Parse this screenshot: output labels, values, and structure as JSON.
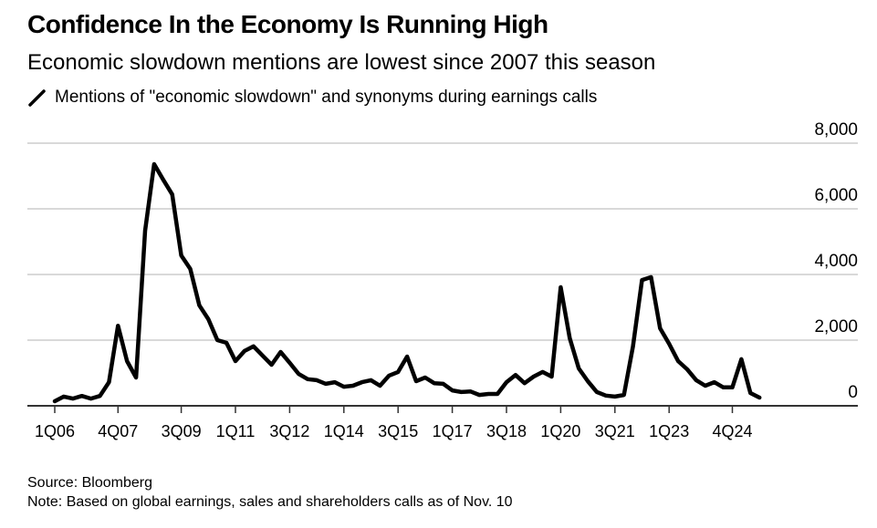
{
  "header": {
    "title": "Confidence In the Economy Is Running High",
    "subtitle": "Economic slowdown mentions are lowest since 2007 this season",
    "legend_label": "Mentions of \"economic slowdown\" and synonyms during earnings calls"
  },
  "footer": {
    "source": "Source: Bloomberg",
    "note": "Note: Based on global earnings, sales and shareholders calls as of Nov. 10"
  },
  "chart_data": {
    "type": "line",
    "title": "Confidence In the Economy Is Running High",
    "subtitle": "Economic slowdown mentions are lowest since 2007 this season",
    "xlabel": "",
    "ylabel": "",
    "ylim": [
      0,
      8000
    ],
    "yticks": [
      0,
      2000,
      4000,
      6000,
      8000
    ],
    "ytick_labels": [
      "0",
      "2,000",
      "4,000",
      "6,000",
      "8,000"
    ],
    "ytick_side": "right",
    "grid": true,
    "legend_position": "top-left",
    "x_start": "1Q06",
    "x_frequency": "quarterly",
    "xticks": [
      {
        "label": "1Q06",
        "index": 0
      },
      {
        "label": "4Q07",
        "index": 7
      },
      {
        "label": "3Q09",
        "index": 14
      },
      {
        "label": "1Q11",
        "index": 20
      },
      {
        "label": "3Q12",
        "index": 26
      },
      {
        "label": "1Q14",
        "index": 32
      },
      {
        "label": "3Q15",
        "index": 38
      },
      {
        "label": "1Q17",
        "index": 44
      },
      {
        "label": "3Q18",
        "index": 50
      },
      {
        "label": "1Q20",
        "index": 56
      },
      {
        "label": "3Q21",
        "index": 62
      },
      {
        "label": "1Q23",
        "index": 68
      },
      {
        "label": "4Q24",
        "index": 75
      }
    ],
    "series": [
      {
        "name": "Mentions of \"economic slowdown\" and synonyms during earnings calls",
        "color": "#000000",
        "values": [
          140,
          280,
          220,
          300,
          220,
          300,
          720,
          2440,
          1360,
          860,
          5330,
          7360,
          6890,
          6440,
          4580,
          4170,
          3060,
          2640,
          2000,
          1920,
          1360,
          1670,
          1810,
          1530,
          1250,
          1640,
          1310,
          970,
          810,
          780,
          670,
          720,
          580,
          610,
          720,
          780,
          610,
          920,
          1030,
          1500,
          750,
          860,
          690,
          670,
          470,
          420,
          440,
          330,
          360,
          360,
          720,
          940,
          690,
          890,
          1030,
          890,
          3610,
          2060,
          1140,
          750,
          420,
          310,
          280,
          330,
          1810,
          3830,
          3920,
          2360,
          1890,
          1360,
          1110,
          780,
          610,
          720,
          560,
          560,
          1420,
          390,
          250
        ]
      }
    ]
  }
}
